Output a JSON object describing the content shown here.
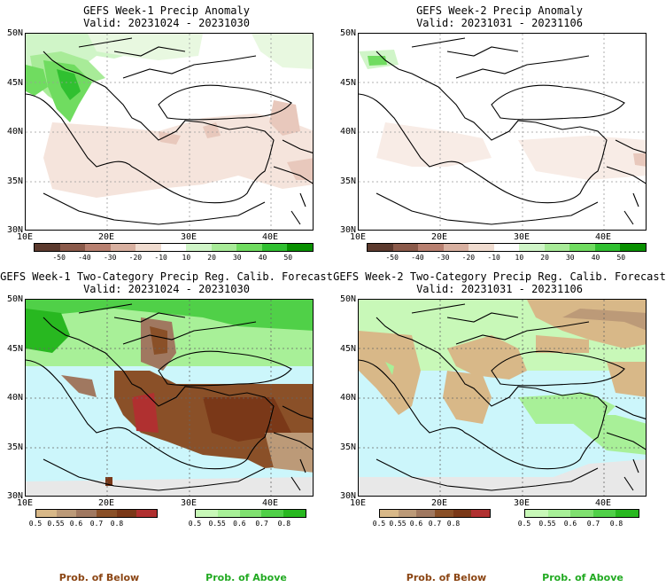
{
  "panels": [
    {
      "title": "GEFS Week-1 Precip Anomaly",
      "valid": "Valid: 20231024 - 20231030"
    },
    {
      "title": "GEFS Week-2 Precip Anomaly",
      "valid": "Valid: 20231031 - 20231106"
    },
    {
      "title": "GEFS Week-1 Two-Category Precip Reg. Calib. Forecast",
      "valid": "Valid: 20231024 - 20231030"
    },
    {
      "title": "GEFS Week-2 Two-Category Precip Reg. Calib. Forecast",
      "valid": "Valid: 20231031 - 20231106"
    }
  ],
  "axes": {
    "lat_labels": [
      "50N",
      "45N",
      "40N",
      "35N",
      "30N"
    ],
    "lon_labels": [
      "10E",
      "20E",
      "30E",
      "40E"
    ]
  },
  "anomaly_colorbar": {
    "ticks": [
      "-50",
      "-40",
      "-30",
      "-20",
      "-10",
      "10",
      "20",
      "30",
      "40",
      "50"
    ],
    "colors": [
      "#5c3a2e",
      "#8b5a4a",
      "#b88070",
      "#d8b0a0",
      "#f0dcd0",
      "#ffffff",
      "#d0f5c8",
      "#a8eb98",
      "#70dc60",
      "#30c030",
      "#089000"
    ]
  },
  "prob_colorbar": {
    "below_ticks": [
      "0.5",
      "0.55",
      "0.6",
      "0.7",
      "0.8"
    ],
    "above_ticks": [
      "0.5",
      "0.55",
      "0.6",
      "0.7",
      "0.8"
    ],
    "below_colors": [
      "#d8b888",
      "#bc9a78",
      "#a07860",
      "#8a5028",
      "#7a3818",
      "#b03030"
    ],
    "above_colors": [
      "#c8f8b8",
      "#a8f098",
      "#80e070",
      "#50d048",
      "#28b820"
    ]
  },
  "legend": {
    "below": "Prob. of Below",
    "above": "Prob. of Above",
    "below_color": "#8b4513",
    "above_color": "#22aa22"
  }
}
